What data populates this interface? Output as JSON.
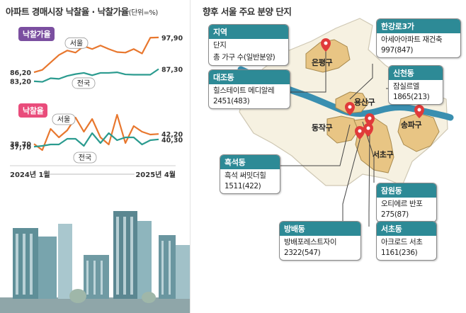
{
  "colors": {
    "seoul": "#e8772e",
    "national": "#2b9b8f",
    "pill_bid_rate": "#7b4fa0",
    "pill_win_rate": "#e94c7b",
    "teal": "#2d8a96",
    "map_land": "#f6f1e1",
    "map_district": "#e8c584",
    "river": "#3a8fb0",
    "pin": "#e03a3a"
  },
  "left_title": "아파트 경매시장 낙찰율 · 낙찰가율",
  "left_unit": "(단위=%)",
  "right_title": "향후 서울 주요 분양 단지",
  "chart_data": [
    {
      "type": "line",
      "title": "낙찰가율",
      "x_start_label": "2024년 1월",
      "x_end_label": "2025년 4월",
      "x": [
        "2024-01",
        "2024-02",
        "2024-03",
        "2024-04",
        "2024-05",
        "2024-06",
        "2024-07",
        "2024-08",
        "2024-09",
        "2024-10",
        "2024-11",
        "2024-12",
        "2025-01",
        "2025-02",
        "2025-03",
        "2025-04"
      ],
      "series": [
        {
          "name": "서울",
          "values": [
            86.2,
            87.0,
            89.5,
            92.0,
            93.5,
            92.8,
            95.0,
            94.0,
            95.2,
            94.0,
            93.0,
            92.8,
            94.0,
            92.5,
            97.8,
            97.9
          ]
        },
        {
          "name": "전국",
          "values": [
            83.2,
            83.0,
            84.2,
            84.0,
            85.0,
            85.6,
            86.0,
            85.2,
            86.0,
            86.0,
            86.2,
            85.5,
            85.4,
            85.4,
            85.4,
            87.3
          ]
        }
      ],
      "start_labels": [
        "86,20",
        "83,20"
      ],
      "end_labels": [
        "97,90",
        "87,30"
      ],
      "ylim": [
        81,
        100
      ]
    },
    {
      "type": "line",
      "title": "낙찰율",
      "x_start_label": "2024년 1월",
      "x_end_label": "2025년 4월",
      "x": [
        "2024-01",
        "2024-02",
        "2024-03",
        "2024-04",
        "2024-05",
        "2024-06",
        "2024-07",
        "2024-08",
        "2024-09",
        "2024-10",
        "2024-11",
        "2024-12",
        "2025-01",
        "2025-02",
        "2025-03",
        "2025-04"
      ],
      "series": [
        {
          "name": "서울",
          "values": [
            38.7,
            36.5,
            44.0,
            41.0,
            43.5,
            48.0,
            43.0,
            47.5,
            41.0,
            38.5,
            49.0,
            39.0,
            45.0,
            43.0,
            42.0,
            42.2
          ]
        },
        {
          "name": "전국",
          "values": [
            37.7,
            38.0,
            38.5,
            38.5,
            40.5,
            40.5,
            38.0,
            42.5,
            39.0,
            42.5,
            40.0,
            41.0,
            41.0,
            38.5,
            40.0,
            40.3
          ]
        }
      ],
      "start_labels": [
        "38,70",
        "37,70"
      ],
      "end_labels": [
        "42,20",
        "40,30"
      ],
      "ylim": [
        34,
        52
      ]
    }
  ],
  "legend": {
    "header": "지역",
    "line1": "단지",
    "line2": "총 가구 수(일반분양)"
  },
  "complexes": [
    {
      "area": "대조동",
      "name": "힐스테이트 메디알레",
      "units": "2451(483)"
    },
    {
      "area": "한강로3가",
      "name": "아세아아파트 재건축",
      "units": "997(847)"
    },
    {
      "area": "신천동",
      "name": "잠실르엘",
      "units": "1865(213)"
    },
    {
      "area": "흑석동",
      "name": "흑석 써밋더힐",
      "units": "1511(422)"
    },
    {
      "area": "잠원동",
      "name": "오티에르 반포",
      "units": "275(87)"
    },
    {
      "area": "방배동",
      "name": "방배포레스트자이",
      "units": "2322(547)"
    },
    {
      "area": "서초동",
      "name": "아크로드 서초",
      "units": "1161(236)"
    }
  ],
  "districts": [
    "은평구",
    "용산구",
    "동작구",
    "송파구",
    "서초구"
  ]
}
